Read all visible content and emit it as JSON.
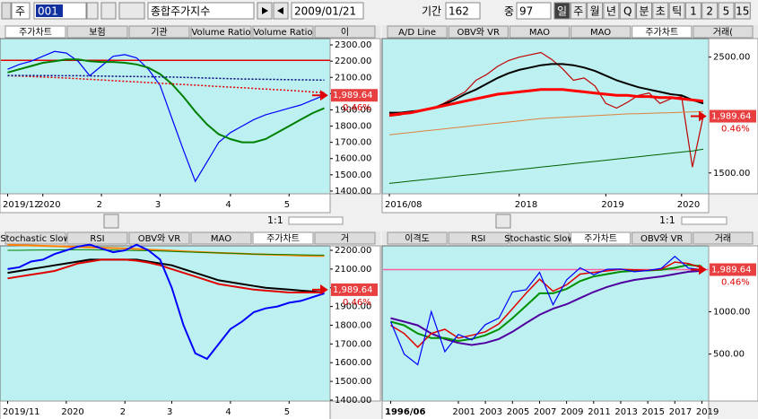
{
  "toolbar": {
    "market_type": "주",
    "code": "001",
    "name": "종합주가지수",
    "date": "2009/01/21",
    "period_label": "기간",
    "period": "162",
    "mid_label": "중",
    "mid": "97",
    "intervals": [
      "일",
      "주",
      "월",
      "년",
      "Q",
      "분",
      "초",
      "틱",
      "1",
      "2",
      "5",
      "15"
    ],
    "active_interval": 0
  },
  "controls": {
    "left_scale": "1:1",
    "right_scale": "1:1"
  },
  "chart_data": [
    {
      "type": "line",
      "tabs": [
        "주가차트",
        "보험",
        "기관",
        "Volume Ratio",
        "Volume Ratio",
        "이"
      ],
      "active_tab": 0,
      "categories": [
        "2019/12",
        null,
        null,
        "2020",
        null,
        null,
        null,
        null,
        "2",
        null,
        null,
        null,
        null,
        "3",
        null,
        null,
        null,
        null,
        null,
        "4",
        null,
        null,
        null,
        null,
        "5",
        null,
        null,
        null
      ],
      "series": [
        {
          "color": "#0000ff",
          "width": 1.2,
          "values": [
            2150,
            2180,
            2200,
            2230,
            2260,
            2250,
            2200,
            2110,
            2170,
            2230,
            2240,
            2220,
            2150,
            2050,
            1850,
            1650,
            1460,
            1580,
            1700,
            1760,
            1800,
            1840,
            1870,
            1890,
            1910,
            1930,
            1960,
            1990
          ]
        },
        {
          "color": "#008000",
          "width": 2,
          "values": [
            2130,
            2150,
            2170,
            2190,
            2200,
            2210,
            2210,
            2200,
            2195,
            2195,
            2190,
            2180,
            2160,
            2120,
            2060,
            1980,
            1890,
            1810,
            1750,
            1720,
            1700,
            1700,
            1720,
            1760,
            1800,
            1840,
            1880,
            1910
          ]
        },
        {
          "color": "#e00000",
          "width": 1.5,
          "style": "dotted",
          "values": [
            2110,
            2108,
            2105,
            2102,
            2099,
            2096,
            2092,
            2088,
            2084,
            2080,
            2076,
            2072,
            2068,
            2064,
            2060,
            2056,
            2052,
            2048,
            2044,
            2040,
            2036,
            2032,
            2028,
            2024,
            2020,
            2015,
            2010,
            2005
          ]
        },
        {
          "color": "#000080",
          "width": 1.5,
          "style": "dotted",
          "values": [
            2112,
            2112,
            2112,
            2111,
            2111,
            2110,
            2110,
            2109,
            2108,
            2107,
            2106,
            2105,
            2104,
            2103,
            2102,
            2100,
            2098,
            2096,
            2094,
            2092,
            2090,
            2089,
            2088,
            2087,
            2086,
            2085,
            2084,
            2083
          ]
        }
      ],
      "hline": {
        "value": 2205,
        "color": "#e00000"
      },
      "ylim": [
        1383,
        2339
      ],
      "yticks": [
        {
          "value": 1400,
          "label": "1400.00"
        },
        {
          "value": 1500,
          "label": "1500.00"
        },
        {
          "value": 1600,
          "label": "1600.00"
        },
        {
          "value": 1700,
          "label": "1700.00"
        },
        {
          "value": 1800,
          "label": "1800.00"
        },
        {
          "value": 1900,
          "label": "1900.00"
        },
        {
          "value": 2000,
          "label": "2000.00"
        },
        {
          "value": 2100,
          "label": "2100.00"
        },
        {
          "value": 2200,
          "label": "2200.00"
        },
        {
          "value": 2300,
          "label": "2300.00"
        }
      ],
      "last_value": {
        "value": 1989.64,
        "label": "1,989.64"
      },
      "change": "0.46%"
    },
    {
      "type": "line",
      "tabs": [
        "A/D Line",
        "OBV와 VR",
        "MAO",
        "MAO",
        "주가차트",
        "거래("
      ],
      "active_tab": 4,
      "categories": [
        "2016/08",
        null,
        null,
        null,
        null,
        null,
        null,
        null,
        null,
        null,
        null,
        null,
        "2018",
        null,
        null,
        null,
        null,
        null,
        null,
        null,
        "2019",
        null,
        null,
        null,
        null,
        null,
        null,
        "2020",
        null,
        null
      ],
      "series": [
        {
          "color": "#c00000",
          "width": 1.2,
          "values": [
            1990,
            2000,
            2030,
            2040,
            2060,
            2100,
            2150,
            2200,
            2300,
            2350,
            2420,
            2470,
            2500,
            2520,
            2540,
            2480,
            2400,
            2300,
            2320,
            2250,
            2100,
            2060,
            2110,
            2170,
            2190,
            2100,
            2140,
            2160,
            1550,
            1990
          ]
        },
        {
          "color": "#000000",
          "width": 2,
          "values": [
            2020,
            2020,
            2030,
            2040,
            2060,
            2090,
            2130,
            2180,
            2220,
            2270,
            2320,
            2360,
            2390,
            2410,
            2430,
            2440,
            2440,
            2430,
            2410,
            2380,
            2340,
            2300,
            2270,
            2240,
            2220,
            2200,
            2180,
            2170,
            2130,
            2100
          ]
        },
        {
          "color": "#ff0000",
          "width": 3,
          "values": [
            2000,
            2010,
            2020,
            2040,
            2060,
            2080,
            2100,
            2120,
            2140,
            2160,
            2180,
            2190,
            2200,
            2210,
            2220,
            2220,
            2220,
            2210,
            2200,
            2190,
            2180,
            2170,
            2170,
            2160,
            2160,
            2150,
            2150,
            2140,
            2130,
            2120
          ]
        },
        {
          "color": "#e08040",
          "width": 1,
          "values": [
            1830,
            1840,
            1850,
            1860,
            1870,
            1880,
            1890,
            1900,
            1910,
            1920,
            1930,
            1940,
            1950,
            1960,
            1970,
            1975,
            1980,
            1985,
            1990,
            1995,
            2000,
            2005,
            2010,
            2012,
            2015,
            2018,
            2020,
            2024,
            2027,
            2030
          ]
        },
        {
          "color": "#006000",
          "width": 1,
          "values": [
            1410,
            1420,
            1430,
            1440,
            1450,
            1460,
            1470,
            1480,
            1490,
            1500,
            1510,
            1520,
            1530,
            1540,
            1550,
            1560,
            1570,
            1580,
            1590,
            1600,
            1610,
            1620,
            1630,
            1640,
            1650,
            1660,
            1670,
            1680,
            1690,
            1705
          ]
        }
      ],
      "ylim": [
        1320,
        2660
      ],
      "yticks": [
        {
          "value": 1500,
          "label": "1500.00"
        },
        {
          "value": 2500,
          "label": "2500.00"
        }
      ],
      "last_value": {
        "value": 1989.64,
        "label": "1,989.64"
      },
      "change": "0.46%"
    },
    {
      "type": "line",
      "tabs": [
        "Stochastic Slow",
        "RSI",
        "OBV와 VR",
        "MAO",
        "주가차트",
        "거"
      ],
      "active_tab": 4,
      "categories": [
        "2019/11",
        null,
        null,
        null,
        null,
        "2020",
        null,
        null,
        null,
        null,
        "2",
        null,
        null,
        null,
        "3",
        null,
        null,
        null,
        null,
        "4",
        null,
        null,
        null,
        null,
        "5",
        null,
        null,
        null
      ],
      "series": [
        {
          "color": "#ff8000",
          "width": 2,
          "values": [
            2230,
            2228,
            2226,
            2224,
            2222,
            2220,
            2218,
            2216,
            2214,
            2212,
            2210,
            2207,
            2204,
            2201,
            2198,
            2195,
            2192,
            2189,
            2186,
            2184,
            2182,
            2180,
            2178,
            2176,
            2174,
            2172,
            2171,
            2170
          ]
        },
        {
          "color": "#008000",
          "width": 1,
          "values": [
            2200,
            2200,
            2201,
            2202,
            2202,
            2203,
            2203,
            2203,
            2202,
            2201,
            2200,
            2199,
            2198,
            2196,
            2194,
            2192,
            2190,
            2188,
            2186,
            2184,
            2182,
            2180,
            2179,
            2178,
            2177,
            2176,
            2175,
            2174
          ]
        },
        {
          "color": "#000000",
          "width": 2,
          "values": [
            2080,
            2090,
            2100,
            2110,
            2120,
            2130,
            2140,
            2150,
            2150,
            2150,
            2150,
            2150,
            2140,
            2130,
            2120,
            2100,
            2080,
            2060,
            2040,
            2030,
            2020,
            2010,
            2000,
            1995,
            1990,
            1985,
            1980,
            1975
          ]
        },
        {
          "color": "#e00000",
          "width": 2,
          "values": [
            2050,
            2060,
            2070,
            2080,
            2090,
            2110,
            2130,
            2140,
            2150,
            2150,
            2150,
            2145,
            2135,
            2120,
            2100,
            2080,
            2060,
            2040,
            2020,
            2010,
            2000,
            1990,
            1985,
            1980,
            1975,
            1975,
            1975,
            1975
          ]
        },
        {
          "color": "#0000ff",
          "width": 2,
          "values": [
            2100,
            2110,
            2140,
            2150,
            2180,
            2200,
            2220,
            2230,
            2210,
            2190,
            2200,
            2230,
            2200,
            2150,
            2000,
            1800,
            1650,
            1620,
            1700,
            1780,
            1820,
            1870,
            1890,
            1900,
            1920,
            1930,
            1950,
            1970
          ]
        }
      ],
      "ylim": [
        1395,
        2224
      ],
      "yticks": [
        {
          "value": 1400,
          "label": "1400.00"
        },
        {
          "value": 1500,
          "label": "1500.00"
        },
        {
          "value": 1600,
          "label": "1600.00"
        },
        {
          "value": 1700,
          "label": "1700.00"
        },
        {
          "value": 1800,
          "label": "1800.00"
        },
        {
          "value": 1900,
          "label": "1900.00"
        },
        {
          "value": 2000,
          "label": "2000.00"
        },
        {
          "value": 2100,
          "label": "2100.00"
        },
        {
          "value": 2200,
          "label": "2200.00"
        }
      ],
      "last_value": {
        "value": 1989.64,
        "label": "1,989.64"
      },
      "change": "0.46%"
    },
    {
      "type": "line",
      "tabs": [
        "이격도",
        "RSI",
        "Stochastic Slow",
        "주가차트",
        "OBV와 VR",
        "거래"
      ],
      "active_tab": 3,
      "categories": [
        "1996/06",
        null,
        null,
        null,
        null,
        "2001",
        null,
        "2003",
        null,
        "2005",
        null,
        "2007",
        null,
        "2009",
        null,
        "2011",
        null,
        "2013",
        null,
        "2015",
        null,
        "2017",
        null,
        "2019"
      ],
      "series": [
        {
          "color": "#5000a0",
          "width": 2,
          "values": [
            900,
            850,
            800,
            700,
            640,
            600,
            580,
            600,
            640,
            720,
            830,
            950,
            1050,
            1130,
            1250,
            1380,
            1500,
            1600,
            1680,
            1730,
            1780,
            1850,
            1920,
            1950
          ]
        },
        {
          "color": "#009000",
          "width": 2,
          "values": [
            850,
            800,
            700,
            650,
            650,
            620,
            640,
            680,
            750,
            900,
            1100,
            1350,
            1350,
            1450,
            1650,
            1780,
            1850,
            1920,
            1950,
            1960,
            1980,
            2050,
            2150,
            2100
          ]
        },
        {
          "color": "#e00000",
          "width": 1.5,
          "values": [
            800,
            700,
            560,
            700,
            750,
            650,
            680,
            720,
            820,
            1050,
            1350,
            1700,
            1400,
            1550,
            1850,
            1900,
            1950,
            2000,
            1980,
            1970,
            2000,
            2250,
            2200,
            2050
          ]
        },
        {
          "color": "#0000ff",
          "width": 1.2,
          "values": [
            850,
            500,
            420,
            1000,
            520,
            690,
            630,
            810,
            900,
            1380,
            1430,
            1900,
            1120,
            1680,
            2050,
            1830,
            2000,
            2010,
            1920,
            1960,
            2030,
            2470,
            2040,
            1990
          ]
        }
      ],
      "hline": {
        "value": 1990,
        "color": "#ff60a0"
      },
      "log": true,
      "ylim": [
        232,
        2935
      ],
      "yticks": [
        {
          "value": 500,
          "label": "500.00"
        },
        {
          "value": 1000,
          "label": "1000.00"
        }
      ],
      "last_value": {
        "value": 1989.64,
        "label": "1,989.64"
      },
      "change": "0.46%"
    }
  ]
}
